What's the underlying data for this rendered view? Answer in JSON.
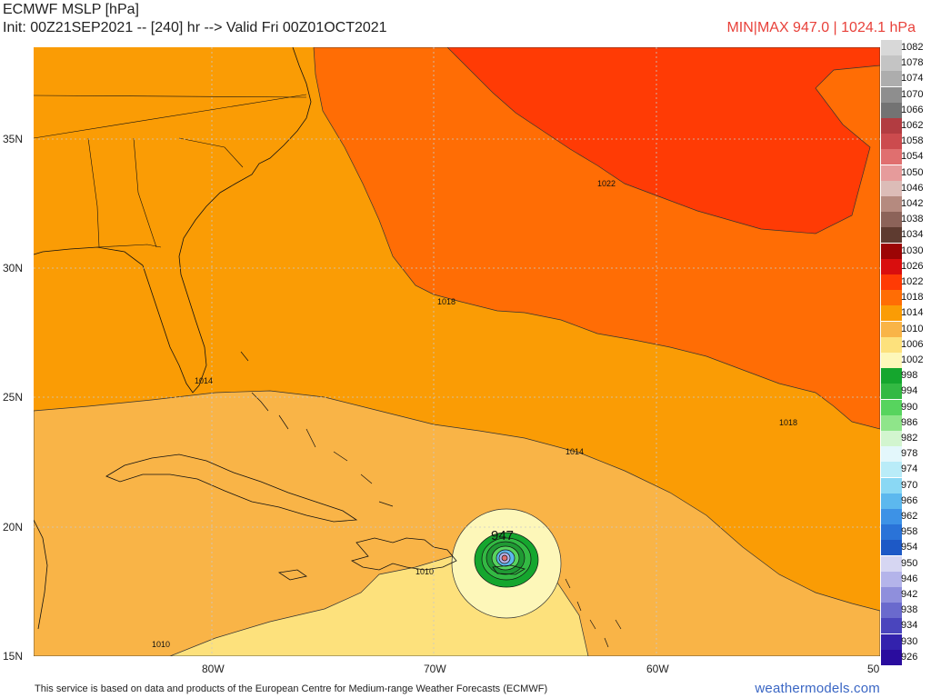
{
  "header": {
    "title": "ECMWF MSLP [hPa]",
    "init_line": "Init: 00Z21SEP2021 -- [240] hr --> Valid Fri 00Z01OCT2021",
    "minmax": "MIN|MAX 947.0 | 1024.1 hPa"
  },
  "map": {
    "lat_labels": [
      "35N",
      "30N",
      "25N",
      "20N",
      "15N"
    ],
    "lon_labels": [
      "80W",
      "70W",
      "60W",
      "50"
    ],
    "contour_labels": [
      "1022",
      "1018",
      "1018",
      "1014",
      "1014",
      "1010",
      "1010"
    ],
    "center_label": "947",
    "colors": {
      "p1022": "#ff3b05",
      "p1018": "#ff6d05",
      "p1014": "#fa9c05",
      "p1010": "#f9b447",
      "p1006": "#fde17c",
      "p1002": "#fdf7b9",
      "p998": "#15a62e",
      "p994": "#33b943"
    }
  },
  "legend": {
    "items": [
      {
        "label": "1082",
        "color": "#d8d8d8"
      },
      {
        "label": "1078",
        "color": "#c4c4c4"
      },
      {
        "label": "1074",
        "color": "#adadad"
      },
      {
        "label": "1070",
        "color": "#8e8e8e"
      },
      {
        "label": "1066",
        "color": "#737373"
      },
      {
        "label": "1062",
        "color": "#b23c41"
      },
      {
        "label": "1058",
        "color": "#cc4b4e"
      },
      {
        "label": "1054",
        "color": "#e06f6f"
      },
      {
        "label": "1050",
        "color": "#e69b9b"
      },
      {
        "label": "1046",
        "color": "#dcbcb7"
      },
      {
        "label": "1042",
        "color": "#b58a7f"
      },
      {
        "label": "1038",
        "color": "#8c6359"
      },
      {
        "label": "1034",
        "color": "#5e3b30"
      },
      {
        "label": "1030",
        "color": "#9c0505"
      },
      {
        "label": "1026",
        "color": "#d90e0e"
      },
      {
        "label": "1022",
        "color": "#ff3b05"
      },
      {
        "label": "1018",
        "color": "#ff6d05"
      },
      {
        "label": "1014",
        "color": "#fa9c05"
      },
      {
        "label": "1010",
        "color": "#f9b447"
      },
      {
        "label": "1006",
        "color": "#fde17c"
      },
      {
        "label": "1002",
        "color": "#fdf7b9"
      },
      {
        "label": "998",
        "color": "#15a62e"
      },
      {
        "label": "994",
        "color": "#33b943"
      },
      {
        "label": "990",
        "color": "#57d45e"
      },
      {
        "label": "986",
        "color": "#8fe58a"
      },
      {
        "label": "982",
        "color": "#d2f5cf"
      },
      {
        "label": "978",
        "color": "#e3f7fb"
      },
      {
        "label": "974",
        "color": "#b9ecf8"
      },
      {
        "label": "970",
        "color": "#8ad8f4"
      },
      {
        "label": "966",
        "color": "#5cb8ee"
      },
      {
        "label": "962",
        "color": "#3d92e6"
      },
      {
        "label": "958",
        "color": "#2a73d8"
      },
      {
        "label": "954",
        "color": "#1d59c6"
      },
      {
        "label": "950",
        "color": "#d6d6f2"
      },
      {
        "label": "946",
        "color": "#b4b4ea"
      },
      {
        "label": "942",
        "color": "#8f8fdc"
      },
      {
        "label": "938",
        "color": "#6a6acd"
      },
      {
        "label": "934",
        "color": "#4a45bd"
      },
      {
        "label": "930",
        "color": "#3322ad"
      },
      {
        "label": "926",
        "color": "#2a0c9e"
      }
    ]
  },
  "footer": {
    "disclaimer": "This service is based on data and products of the European Centre for Medium-range Weather Forecasts (ECMWF)",
    "brand": "weathermodels.com"
  }
}
